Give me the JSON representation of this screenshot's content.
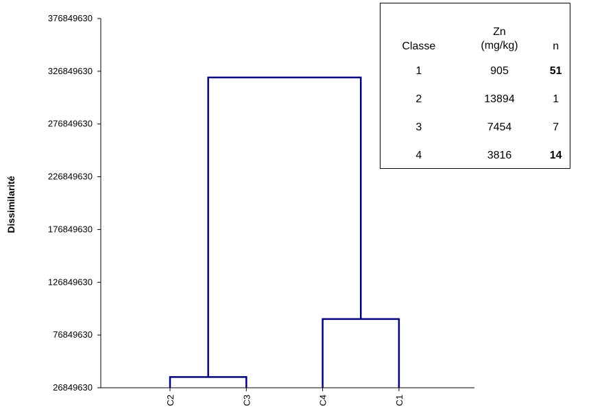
{
  "chart_data": {
    "type": "dendrogram",
    "ylabel": "Dissimilarité",
    "yticks": [
      26849630,
      76849630,
      126849630,
      176849630,
      226849630,
      276849630,
      326849630,
      376849630
    ],
    "ylim": [
      26849630,
      376849630
    ],
    "leaves": [
      "C2",
      "C3",
      "C4",
      "C1"
    ],
    "merges": [
      {
        "left": "C2",
        "right": "C3",
        "height": 37000000
      },
      {
        "left": "C4",
        "right": "C1",
        "height": 92000000
      },
      {
        "left": "C2-C3",
        "right": "C4-C1",
        "height": 321000000
      }
    ],
    "line_color": "#00007f"
  },
  "table": {
    "headers": {
      "classe": "Classe",
      "zn_line1": "Zn",
      "zn_line2": "(mg/kg)",
      "n": "n"
    },
    "rows": [
      {
        "classe": "1",
        "zn": "905",
        "n": "51",
        "n_bold": true
      },
      {
        "classe": "2",
        "zn": "13894",
        "n": "1",
        "n_bold": false
      },
      {
        "classe": "3",
        "zn": "7454",
        "n": "7",
        "n_bold": false
      },
      {
        "classe": "4",
        "zn": "3816",
        "n": "14",
        "n_bold": true
      }
    ]
  }
}
